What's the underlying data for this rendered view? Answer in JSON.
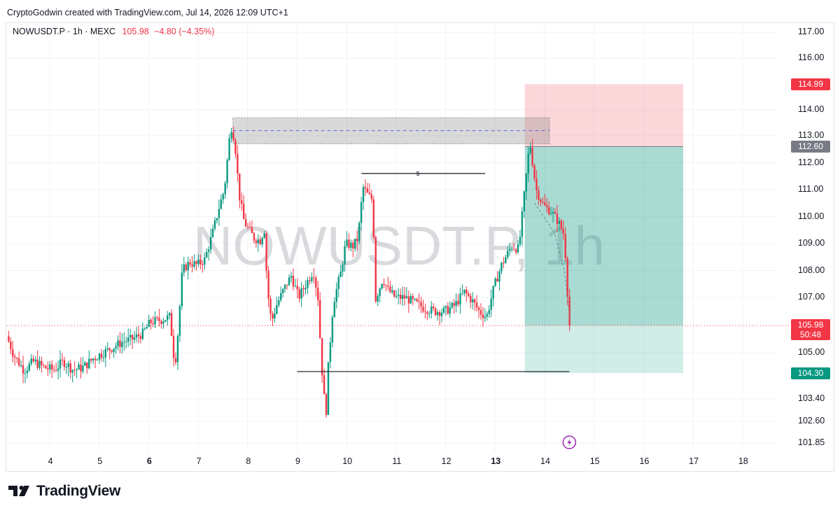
{
  "header": {
    "creator_line": "CryptoGodwin created with TradingView.com, Jul 14, 2026 12:09 UTC+1"
  },
  "legend": {
    "symbol": "NOWUSDT.P · 1h · MEXC",
    "price": "105.98",
    "change": "−4.80 (−4.35%)"
  },
  "watermark": "NOWUSDT.P, 1h",
  "footer": {
    "brand": "TradingView"
  },
  "colors": {
    "up": "#089981",
    "down": "#f23645",
    "stop_zone": "rgba(242,54,69,0.2)",
    "target_zone": "rgba(8,153,129,0.35)",
    "target_zone_light": "rgba(8,153,129,0.18)",
    "supply_box": "rgba(128,128,128,0.3)"
  },
  "price_axis": {
    "ticks": [
      "117.00",
      "116.00",
      "114.00",
      "113.00",
      "112.00",
      "111.00",
      "110.00",
      "109.00",
      "108.00",
      "107.00",
      "105.00",
      "103.40",
      "102.60",
      "101.85"
    ],
    "badges": {
      "stop": "114.99",
      "entry": "112.60",
      "current": "105.98",
      "countdown": "50:48",
      "target": "104.30"
    }
  },
  "time_axis": {
    "labels": [
      "4",
      "5",
      "6",
      "7",
      "8",
      "9",
      "10",
      "11",
      "12",
      "13",
      "14",
      "15",
      "16",
      "17",
      "18"
    ],
    "bold": [
      "6",
      "13"
    ]
  },
  "annotations": {
    "liquidity_marker": "$"
  },
  "chart_data": {
    "type": "candlestick",
    "title": "",
    "symbol": "NOWUSDT.P",
    "timeframe": "1h",
    "exchange": "MEXC",
    "last_price": 105.98,
    "change": -4.8,
    "change_pct": -4.35,
    "ylim": [
      101.4,
      117.4
    ],
    "x_range_days": [
      3.15,
      18.5
    ],
    "x_ticks": [
      4,
      5,
      6,
      7,
      8,
      9,
      10,
      11,
      12,
      13,
      14,
      15,
      16,
      17,
      18
    ],
    "price_path": [
      [
        3.15,
        105.6
      ],
      [
        3.3,
        104.9
      ],
      [
        3.5,
        104.4
      ],
      [
        3.7,
        104.7
      ],
      [
        3.9,
        104.5
      ],
      [
        4.1,
        104.4
      ],
      [
        4.3,
        104.7
      ],
      [
        4.5,
        104.4
      ],
      [
        4.7,
        104.5
      ],
      [
        4.9,
        104.8
      ],
      [
        5.1,
        105.0
      ],
      [
        5.3,
        105.2
      ],
      [
        5.5,
        105.4
      ],
      [
        5.7,
        105.5
      ],
      [
        5.9,
        105.7
      ],
      [
        6.05,
        106.1
      ],
      [
        6.3,
        106.2
      ],
      [
        6.45,
        106.3
      ],
      [
        6.55,
        104.5
      ],
      [
        6.62,
        105.9
      ],
      [
        6.7,
        108.0
      ],
      [
        6.85,
        108.3
      ],
      [
        7.0,
        108.2
      ],
      [
        7.15,
        108.4
      ],
      [
        7.3,
        109.3
      ],
      [
        7.45,
        110.4
      ],
      [
        7.55,
        111.0
      ],
      [
        7.68,
        113.4
      ],
      [
        7.76,
        112.8
      ],
      [
        7.85,
        110.8
      ],
      [
        7.95,
        109.8
      ],
      [
        8.15,
        109.2
      ],
      [
        8.3,
        109.1
      ],
      [
        8.35,
        109.8
      ],
      [
        8.42,
        107.3
      ],
      [
        8.5,
        106.1
      ],
      [
        8.6,
        106.7
      ],
      [
        8.75,
        107.3
      ],
      [
        8.9,
        107.8
      ],
      [
        9.05,
        107.0
      ],
      [
        9.2,
        107.5
      ],
      [
        9.35,
        108.0
      ],
      [
        9.45,
        106.9
      ],
      [
        9.5,
        104.9
      ],
      [
        9.55,
        103.8
      ],
      [
        9.6,
        102.7
      ],
      [
        9.65,
        104.5
      ],
      [
        9.75,
        106.8
      ],
      [
        9.9,
        107.9
      ],
      [
        10.0,
        109.0
      ],
      [
        10.15,
        108.9
      ],
      [
        10.25,
        109.2
      ],
      [
        10.35,
        111.1
      ],
      [
        10.45,
        110.8
      ],
      [
        10.55,
        110.6
      ],
      [
        10.6,
        106.9
      ],
      [
        10.75,
        107.7
      ],
      [
        10.85,
        107.3
      ],
      [
        11.0,
        107.0
      ],
      [
        11.2,
        107.0
      ],
      [
        11.4,
        106.8
      ],
      [
        11.6,
        106.6
      ],
      [
        11.8,
        106.5
      ],
      [
        12.0,
        106.5
      ],
      [
        12.2,
        106.7
      ],
      [
        12.4,
        107.2
      ],
      [
        12.55,
        106.9
      ],
      [
        12.7,
        106.5
      ],
      [
        12.85,
        106.3
      ],
      [
        13.0,
        107.4
      ],
      [
        13.15,
        108.2
      ],
      [
        13.35,
        108.9
      ],
      [
        13.5,
        108.8
      ],
      [
        13.62,
        111.0
      ],
      [
        13.72,
        112.8
      ],
      [
        13.85,
        111.0
      ],
      [
        14.0,
        110.4
      ],
      [
        14.15,
        110.2
      ],
      [
        14.3,
        109.8
      ],
      [
        14.42,
        109.3
      ],
      [
        14.52,
        105.98
      ]
    ],
    "trade_setup": {
      "direction": "short",
      "entry": 112.6,
      "stop_loss": 114.99,
      "take_profit": 104.3,
      "start_day": 13.6,
      "end_day": 16.8
    },
    "supply_zone": {
      "top": 113.7,
      "bottom": 112.7,
      "mid": 113.2,
      "from_day": 7.7,
      "to_day": 14.1
    },
    "liquidity_line": {
      "price": 111.6,
      "from_day": 10.3,
      "to_day": 12.8,
      "marker": "$"
    },
    "support_line": {
      "price": 104.35,
      "from_day": 9.0,
      "to_day": 14.5
    },
    "projection_curve": [
      [
        13.8,
        110.5
      ],
      [
        14.2,
        109.4
      ],
      [
        14.4,
        108.0
      ],
      [
        14.52,
        106.1
      ]
    ],
    "current_price_line": 105.98
  }
}
